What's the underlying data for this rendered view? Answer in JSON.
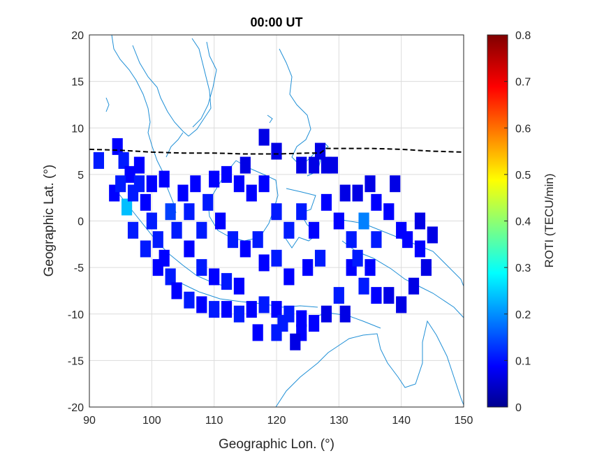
{
  "chart_data": {
    "type": "heatmap",
    "title": "00:00 UT",
    "xlabel": "Geographic Lon. (°)",
    "ylabel": "Geographic Lat. (°)",
    "xlim": [
      90,
      150
    ],
    "ylim": [
      -20,
      20
    ],
    "xticks": [
      "90",
      "100",
      "110",
      "120",
      "130",
      "140",
      "150"
    ],
    "yticks": [
      "20",
      "15",
      "10",
      "5",
      "0",
      "-5",
      "-10",
      "-15",
      "-20"
    ],
    "grid": true,
    "colorbar": {
      "label": "ROTI (TECU/min)",
      "range": [
        0,
        0.8
      ],
      "ticks": [
        "0",
        "0.1",
        "0.2",
        "0.3",
        "0.4",
        "0.5",
        "0.6",
        "0.7",
        "0.8"
      ],
      "colormap": "jet"
    },
    "terminator_line": {
      "style": "dashed",
      "color": "#000000",
      "points": [
        [
          90,
          7.7
        ],
        [
          95,
          7.6
        ],
        [
          100,
          7.4
        ],
        [
          105,
          7.3
        ],
        [
          110,
          7.3
        ],
        [
          115,
          7.2
        ],
        [
          120,
          7.2
        ],
        [
          125,
          7.3
        ],
        [
          127,
          7.3
        ],
        [
          128,
          7.8
        ],
        [
          135,
          7.8
        ],
        [
          140,
          7.7
        ],
        [
          145,
          7.5
        ],
        [
          150,
          7.4
        ]
      ]
    },
    "series": [
      {
        "values_note_colors": [
          "#0a1ad0",
          "#1030e6",
          "#0b0a9c",
          "#2a72ee",
          "#3fc8f0"
        ],
        "cells": [
          [
            91.5,
            6.5,
            0.12
          ],
          [
            94.5,
            8.0,
            0.1
          ],
          [
            95.5,
            6.5,
            0.12
          ],
          [
            96.5,
            5.0,
            0.1
          ],
          [
            96,
            1.5,
            0.25
          ],
          [
            97,
            3,
            0.12
          ],
          [
            98,
            4,
            0.12
          ],
          [
            99,
            2,
            0.1
          ],
          [
            100,
            0,
            0.12
          ],
          [
            101,
            -2,
            0.12
          ],
          [
            102,
            -4,
            0.1
          ],
          [
            103,
            -6,
            0.12
          ],
          [
            104,
            -7.5,
            0.1
          ],
          [
            106,
            -8.5,
            0.12
          ],
          [
            108,
            -9,
            0.1
          ],
          [
            110,
            -9.5,
            0.12
          ],
          [
            112,
            -9.5,
            0.1
          ],
          [
            114,
            -10,
            0.12
          ],
          [
            116,
            -9.5,
            0.1
          ],
          [
            118,
            -9,
            0.12
          ],
          [
            120,
            -9.5,
            0.1
          ],
          [
            122,
            -10,
            0.12
          ],
          [
            124,
            -10.5,
            0.1
          ],
          [
            102,
            4.5,
            0.1
          ],
          [
            103,
            1,
            0.15
          ],
          [
            104,
            -1,
            0.12
          ],
          [
            106,
            -3,
            0.1
          ],
          [
            108,
            -5,
            0.12
          ],
          [
            110,
            -6,
            0.1
          ],
          [
            112,
            -6.5,
            0.12
          ],
          [
            114,
            -7,
            0.1
          ],
          [
            105,
            3,
            0.1
          ],
          [
            107,
            4,
            0.1
          ],
          [
            109,
            2,
            0.12
          ],
          [
            111,
            0,
            0.1
          ],
          [
            113,
            -2,
            0.12
          ],
          [
            115,
            -3,
            0.1
          ],
          [
            117,
            -2,
            0.12
          ],
          [
            118,
            9,
            0.08
          ],
          [
            120,
            7.5,
            0.08
          ],
          [
            124,
            6,
            0.08
          ],
          [
            126,
            6,
            0.08
          ],
          [
            127,
            7.5,
            0.08
          ],
          [
            128,
            6,
            0.08
          ],
          [
            129,
            6,
            0.08
          ],
          [
            115,
            6,
            0.08
          ],
          [
            116,
            3,
            0.1
          ],
          [
            118,
            4,
            0.1
          ],
          [
            120,
            1,
            0.12
          ],
          [
            122,
            -1,
            0.12
          ],
          [
            124,
            1,
            0.12
          ],
          [
            126,
            -1,
            0.1
          ],
          [
            128,
            2,
            0.1
          ],
          [
            130,
            0,
            0.1
          ],
          [
            132,
            -2,
            0.12
          ],
          [
            134,
            0,
            0.2
          ],
          [
            136,
            -2,
            0.12
          ],
          [
            138,
            1,
            0.1
          ],
          [
            140,
            -1,
            0.1
          ],
          [
            141,
            -2,
            0.1
          ],
          [
            143,
            -3,
            0.1
          ],
          [
            143,
            0,
            0.08
          ],
          [
            145,
            -1.5,
            0.08
          ],
          [
            144,
            -5,
            0.08
          ],
          [
            142,
            -7,
            0.08
          ],
          [
            140,
            -9,
            0.08
          ],
          [
            138,
            -8,
            0.08
          ],
          [
            136,
            -8,
            0.1
          ],
          [
            134,
            -7,
            0.12
          ],
          [
            132,
            -5,
            0.1
          ],
          [
            130,
            -8,
            0.12
          ],
          [
            128,
            -10,
            0.08
          ],
          [
            131,
            -10,
            0.08
          ],
          [
            126,
            -11,
            0.1
          ],
          [
            124,
            -12,
            0.1
          ],
          [
            123,
            -13,
            0.08
          ],
          [
            120,
            -12,
            0.12
          ],
          [
            117,
            -12,
            0.1
          ],
          [
            121,
            -11,
            0.12
          ],
          [
            127,
            -4,
            0.12
          ],
          [
            125,
            -5,
            0.1
          ],
          [
            122,
            -6,
            0.1
          ],
          [
            120,
            -4,
            0.12
          ],
          [
            118,
            -4.5,
            0.1
          ],
          [
            133,
            -4,
            0.12
          ],
          [
            135,
            -5,
            0.1
          ],
          [
            131,
            3,
            0.08
          ],
          [
            133,
            3,
            0.08
          ],
          [
            135,
            4,
            0.08
          ],
          [
            139,
            4,
            0.08
          ],
          [
            136,
            2,
            0.1
          ],
          [
            100,
            4,
            0.1
          ],
          [
            98,
            6,
            0.1
          ],
          [
            112,
            5,
            0.1
          ],
          [
            114,
            4,
            0.1
          ],
          [
            110,
            4.5,
            0.1
          ],
          [
            106,
            1,
            0.12
          ],
          [
            108,
            -1,
            0.12
          ],
          [
            101,
            -5,
            0.1
          ],
          [
            99,
            -3,
            0.12
          ],
          [
            97,
            -1,
            0.12
          ],
          [
            94,
            3,
            0.1
          ],
          [
            95,
            4,
            0.12
          ]
        ]
      }
    ]
  }
}
